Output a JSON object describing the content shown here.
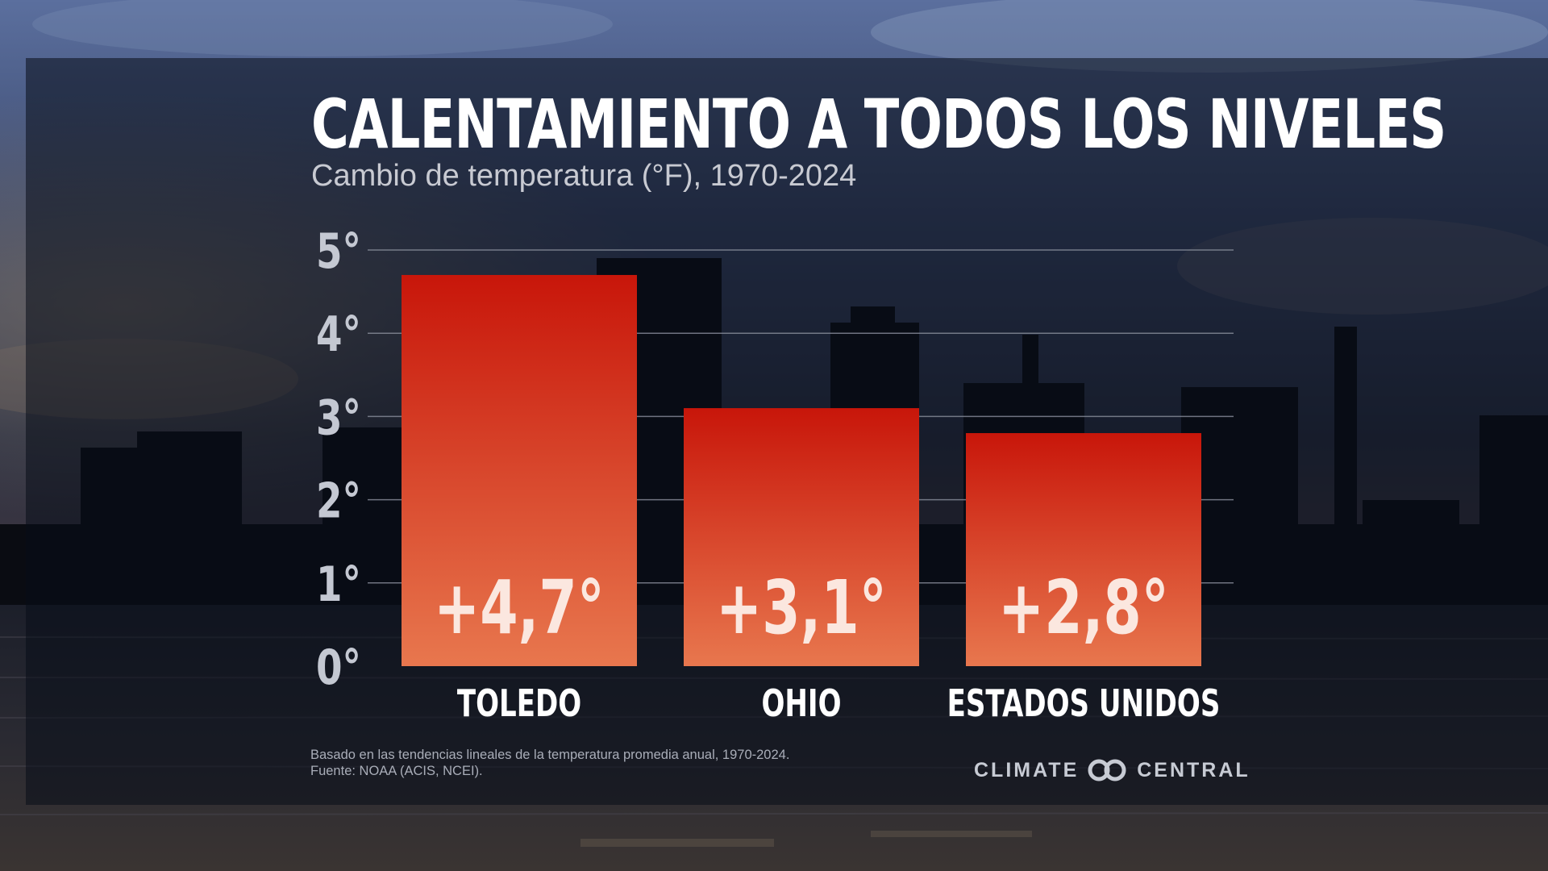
{
  "title": "CALENTAMIENTO A TODOS LOS NIVELES",
  "subtitle": "Cambio de temperatura (°F), 1970-2024",
  "footnote": {
    "line1": "Basado en las tendencias lineales de la temperatura promedia anual, 1970-2024.",
    "line2": "Fuente: NOAA (ACIS, NCEI)."
  },
  "logo": {
    "left": "CLIMATE",
    "right": "CENTRAL"
  },
  "colors": {
    "bar_top": "#c8160a",
    "bar_bottom": "#e8774e",
    "value_label": "#fbe7df",
    "tick_label": "#c4c8d2",
    "gridline": "#8a8f9c"
  },
  "chart_data": {
    "type": "bar",
    "title": "CALENTAMIENTO A TODOS LOS NIVELES",
    "subtitle": "Cambio de temperatura (°F), 1970-2024",
    "categories": [
      "TOLEDO",
      "OHIO",
      "ESTADOS UNIDOS"
    ],
    "values": [
      4.7,
      3.1,
      2.8
    ],
    "value_labels": [
      "+4,7°",
      "+3,1°",
      "+2,8°"
    ],
    "ylim": [
      0,
      5
    ],
    "yticks": [
      0,
      1,
      2,
      3,
      4,
      5
    ],
    "ytick_labels": [
      "0°",
      "1°",
      "2°",
      "3°",
      "4°",
      "5°"
    ],
    "grid": true,
    "legend": "none"
  }
}
